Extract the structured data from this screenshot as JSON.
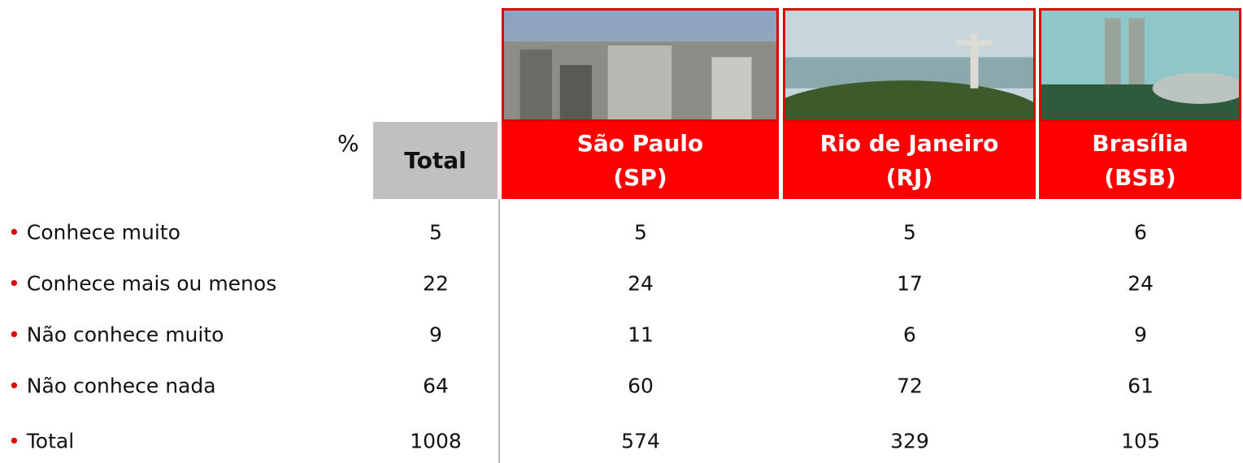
{
  "table": {
    "unit": "%",
    "total_header": "Total",
    "cities": [
      {
        "name": "São Paulo",
        "code": "(SP)"
      },
      {
        "name": "Rio de Janeiro",
        "code": "(RJ)"
      },
      {
        "name": "Brasília",
        "code": "(BSB)"
      }
    ],
    "rows": [
      {
        "label": "Conhece muito",
        "values": [
          5,
          5,
          5,
          6
        ]
      },
      {
        "label": "Conhece mais ou menos",
        "values": [
          22,
          24,
          17,
          24
        ]
      },
      {
        "label": "Não conhece muito",
        "values": [
          9,
          11,
          6,
          9
        ]
      },
      {
        "label": "Não conhece nada",
        "values": [
          64,
          60,
          72,
          61
        ]
      },
      {
        "label": "Total",
        "values": [
          1008,
          574,
          329,
          105
        ]
      }
    ]
  }
}
